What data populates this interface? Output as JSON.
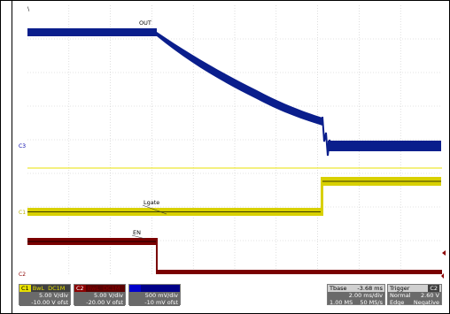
{
  "traces": {
    "out_label": "OUT",
    "lgate_label": "Lgate",
    "en_label": "EN",
    "marker_c3": "C3",
    "marker_c1": "C1",
    "marker_c2": "C2",
    "marker_top": "\\"
  },
  "channels": {
    "c1": {
      "id": "C1",
      "bw": "BwL",
      "coupling": "DC1M",
      "vdiv": "5.00 V/div",
      "offset": "-10.00 V ofst",
      "color": "#e8e000"
    },
    "c2": {
      "id": "C2",
      "bw": "BwL",
      "coupling": "DC1M",
      "vdiv": "5.00 V/div",
      "offset": "-20.00 V ofst",
      "color": "#8b0000"
    },
    "c3": {
      "id": "C3",
      "bw": "BwL",
      "coupling": "DC1M",
      "vdiv": "500 mV/div",
      "offset": "-10 mV ofst",
      "color": "#0000cc"
    }
  },
  "timebase": {
    "label": "Tbase",
    "value": "-3.68 ms",
    "div": "2.00 ms/div",
    "samples": "1.00 MS",
    "rate": "50 MS/s"
  },
  "trigger": {
    "label": "Trigger",
    "channel": "C2",
    "mode": "Normal",
    "level": "2.60 V",
    "type": "Edge",
    "slope": "Negative"
  }
}
